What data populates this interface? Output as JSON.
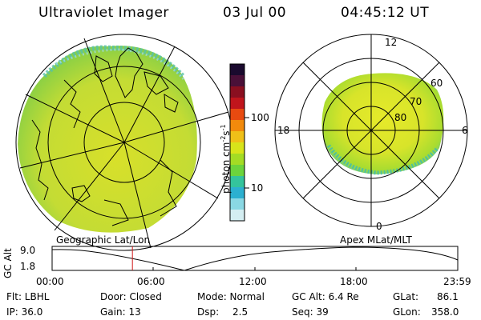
{
  "header": {
    "title": "Ultraviolet Imager",
    "date": "03 Jul 00",
    "time": "04:45:12 UT"
  },
  "colorbar": {
    "unit": "photon cm",
    "unit_exp1": "-2",
    "unit_mid": "s",
    "unit_exp2": "-1",
    "ticks": [
      "100",
      "10"
    ],
    "colors": [
      "#1a0a2e",
      "#4a1038",
      "#8a0f20",
      "#c0151c",
      "#e84a10",
      "#f28a0c",
      "#f0c018",
      "#d8e41a",
      "#a4dc24",
      "#6cd43c",
      "#34c49c",
      "#2cb0d0",
      "#8ad8e4",
      "#d4eef2"
    ]
  },
  "polar": {
    "clock_labels": {
      "top": "12",
      "left": "18",
      "right": "6",
      "bottom": "0"
    },
    "lat_labels": [
      "60",
      "70",
      "80"
    ]
  },
  "maps": {
    "left_label": "Geographic Lat/Lon",
    "right_label": "Apex MLat/MLT"
  },
  "altitude_plot": {
    "ylabel": "GC Alt",
    "y_ticks": [
      "9.0",
      "1.8"
    ],
    "x_ticks": [
      "00:00",
      "06:00",
      "12:00",
      "18:00",
      "23:59"
    ],
    "marker_time_fraction": 0.198,
    "marker_color": "#d01818"
  },
  "info": {
    "filter": "Flt: LBHL",
    "ip": "IP: 36.0",
    "door": "Door: Closed",
    "gain": "Gain: 13",
    "mode": "Mode: Normal",
    "dsp_label": "Dsp:",
    "dsp_value": "2.5",
    "gcalt": "GC Alt: 6.4 Re",
    "seq": "Seq: 39",
    "glat_label": "GLat:",
    "glat_value": "86.1",
    "glon_label": "GLon:",
    "glon_value": "358.0"
  }
}
